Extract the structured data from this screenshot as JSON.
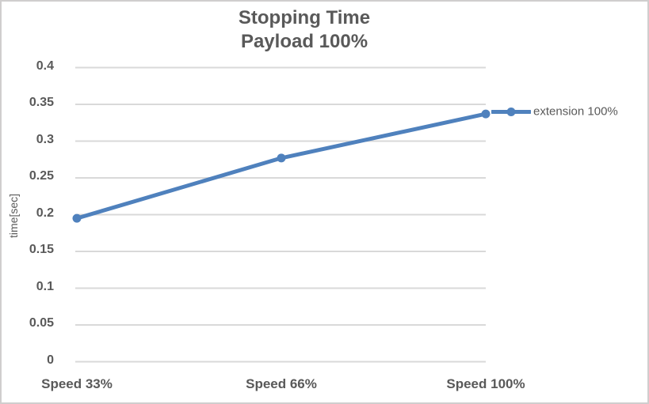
{
  "chart_data": {
    "type": "line",
    "title": "Stopping Time",
    "subtitle": "Payload 100%",
    "categories": [
      "Speed 33%",
      "Speed 66%",
      "Speed 100%"
    ],
    "series": [
      {
        "name": "extension 100%",
        "values": [
          0.195,
          0.277,
          0.337
        ]
      }
    ],
    "xlabel": "",
    "ylabel": "time[sec]",
    "ylim": [
      0,
      0.4
    ],
    "ytick_step": 0.05,
    "yticks": [
      "0",
      "0.05",
      "0.1",
      "0.15",
      "0.2",
      "0.25",
      "0.3",
      "0.35",
      "0.4"
    ],
    "grid": "horizontal",
    "legend_position": "right",
    "marker": "circle",
    "colors": {
      "series": "#4F81BD",
      "gridline": "#D9D9D9",
      "text": "#595959",
      "border": "#D0CECE",
      "background": "#FFFFFF"
    }
  }
}
